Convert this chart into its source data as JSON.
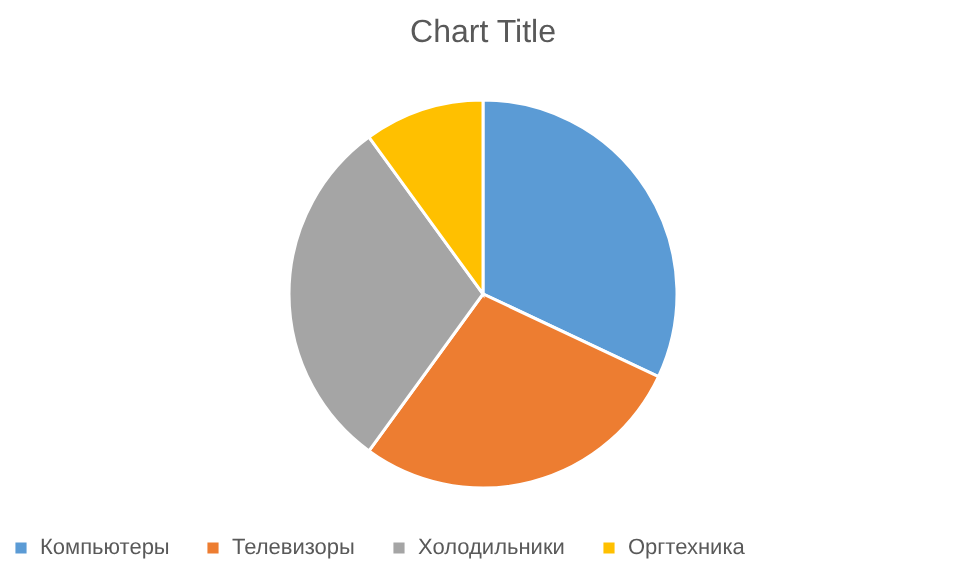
{
  "chart_data": {
    "type": "pie",
    "title": "Chart Title",
    "categories": [
      "Компьютеры",
      "Телевизоры",
      "Холодильники",
      "Оргтехника"
    ],
    "values": [
      32,
      28,
      30,
      10
    ],
    "colors": [
      "#5b9bd5",
      "#ed7d31",
      "#a5a5a5",
      "#ffc000"
    ],
    "legend": "bottom"
  }
}
